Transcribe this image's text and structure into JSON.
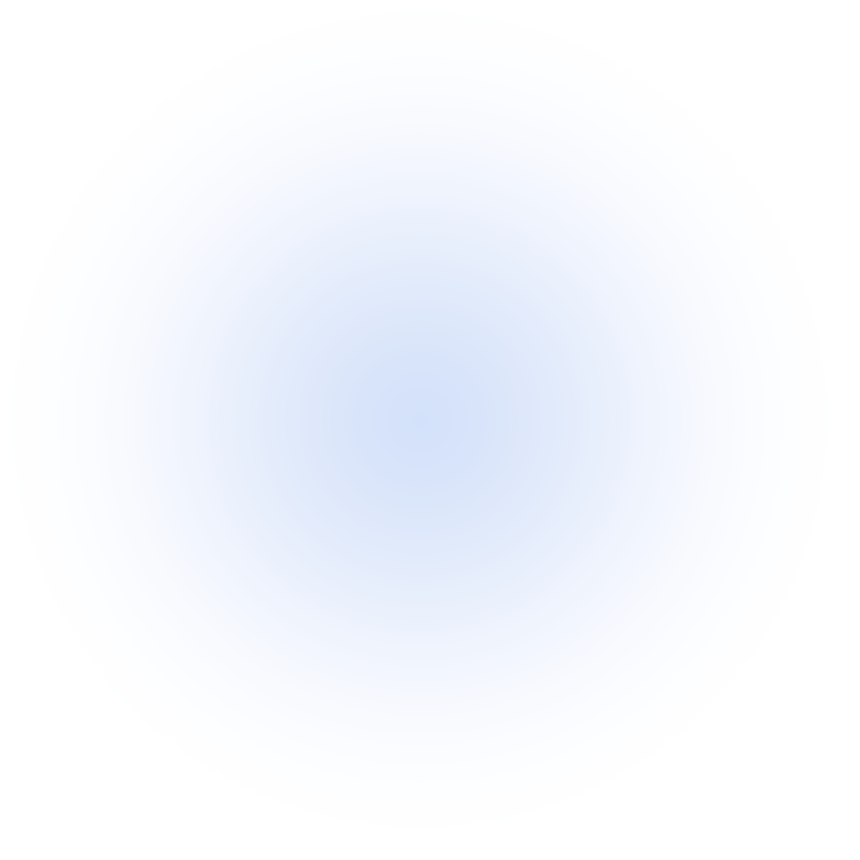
{
  "background": {
    "base_color": "#ffffff",
    "glow_color": "#d3e1fa"
  }
}
